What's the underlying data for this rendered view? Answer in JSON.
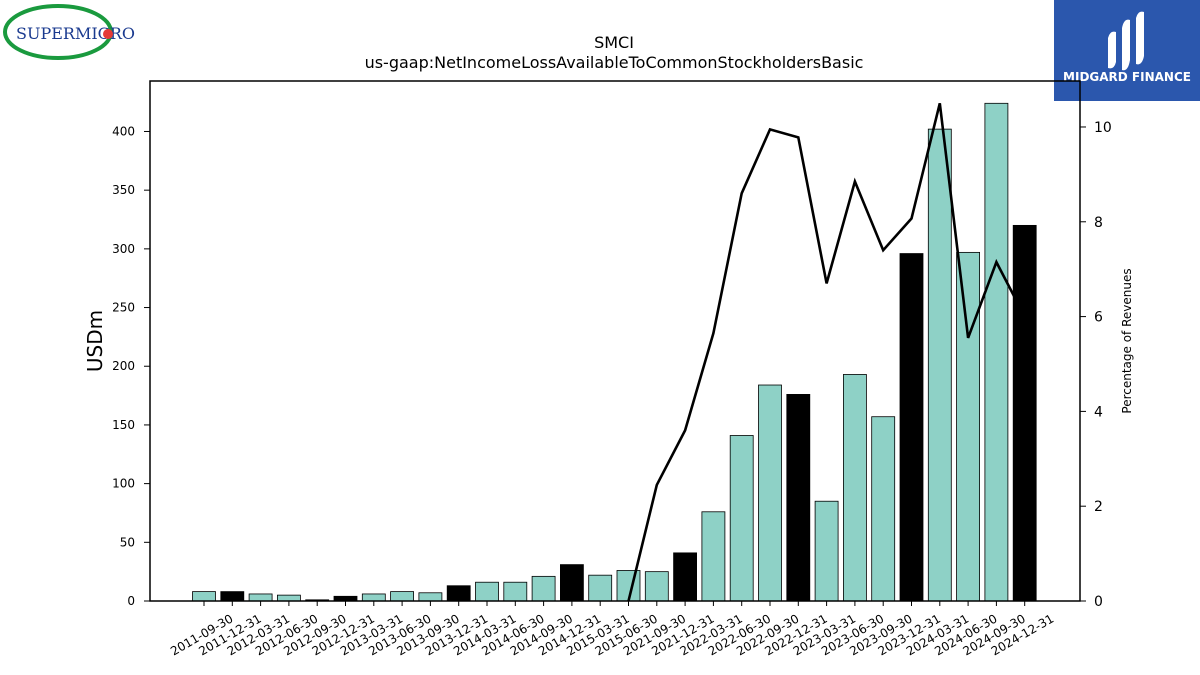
{
  "logo": {
    "company": "SUPERMICRO",
    "accent": "#e53935",
    "ring": "#1a9a3e"
  },
  "brand": {
    "name": "MIDGARD FINANCE",
    "bg": "#2b57ad"
  },
  "chart_data": {
    "type": "bar",
    "title": "SMCI",
    "subtitle": "us-gaap:NetIncomeLossAvailableToCommonStockholdersBasic",
    "ylabel": "USDm",
    "y2label": "Percentage of Revenues",
    "ylim": [
      0,
      443
    ],
    "y2lim": [
      0,
      10.97
    ],
    "yticks": [
      0,
      50,
      100,
      150,
      200,
      250,
      300,
      350,
      400
    ],
    "y2ticks": [
      0,
      2,
      4,
      6,
      8,
      10
    ],
    "bar_color": "#8ed1c6",
    "highlight_color": "#000000",
    "categories": [
      "2011-09-30",
      "2011-12-31",
      "2012-03-31",
      "2012-06-30",
      "2012-09-30",
      "2012-12-31",
      "2013-03-31",
      "2013-06-30",
      "2013-09-30",
      "2013-12-31",
      "2014-03-31",
      "2014-06-30",
      "2014-09-30",
      "2014-12-31",
      "2015-03-31",
      "2015-06-30",
      "2021-09-30",
      "2021-12-31",
      "2022-03-31",
      "2022-06-30",
      "2022-09-30",
      "2022-12-31",
      "2023-03-31",
      "2023-06-30",
      "2023-09-30",
      "2023-12-31",
      "2024-03-31",
      "2024-06-30",
      "2024-09-30",
      "2024-12-31"
    ],
    "series": [
      {
        "type": "bar",
        "values": [
          8,
          8,
          6,
          5,
          1,
          4,
          6,
          8,
          7,
          13,
          16,
          16,
          21,
          31,
          22,
          26,
          25,
          41,
          76,
          141,
          184,
          176,
          85,
          193,
          157,
          296,
          402,
          297,
          424,
          320
        ],
        "highlight": [
          false,
          true,
          false,
          false,
          true,
          true,
          false,
          false,
          false,
          true,
          false,
          false,
          false,
          true,
          false,
          false,
          false,
          true,
          false,
          false,
          false,
          true,
          false,
          false,
          false,
          true,
          false,
          false,
          false,
          true
        ]
      },
      {
        "type": "line",
        "values": [
          null,
          null,
          null,
          null,
          null,
          null,
          null,
          null,
          null,
          null,
          null,
          null,
          null,
          null,
          null,
          0.0,
          2.45,
          3.6,
          5.65,
          8.6,
          9.95,
          9.78,
          6.7,
          8.85,
          7.4,
          8.07,
          10.5,
          5.55,
          7.15,
          6.0
        ]
      }
    ]
  }
}
